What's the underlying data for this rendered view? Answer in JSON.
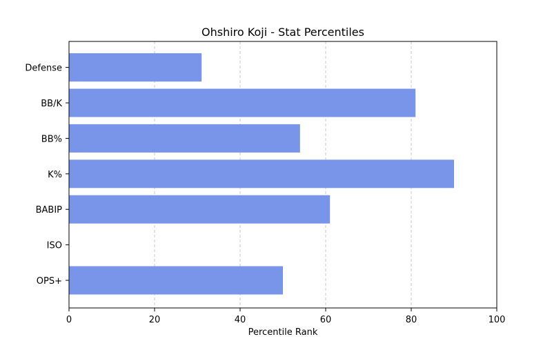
{
  "chart_data": {
    "type": "bar",
    "orientation": "horizontal",
    "title": "Ohshiro Koji - Stat Percentiles",
    "xlabel": "Percentile Rank",
    "ylabel": "",
    "categories": [
      "OPS+",
      "ISO",
      "BABIP",
      "K%",
      "BB%",
      "BB/K",
      "Defense"
    ],
    "values": [
      50,
      0,
      61,
      90,
      54,
      81,
      31
    ],
    "xlim": [
      0,
      100
    ],
    "xticks": [
      0,
      20,
      40,
      60,
      80,
      100
    ],
    "grid": "x-dashed",
    "bar_color": "#7895ea",
    "grid_color": "#c8c8c8"
  }
}
